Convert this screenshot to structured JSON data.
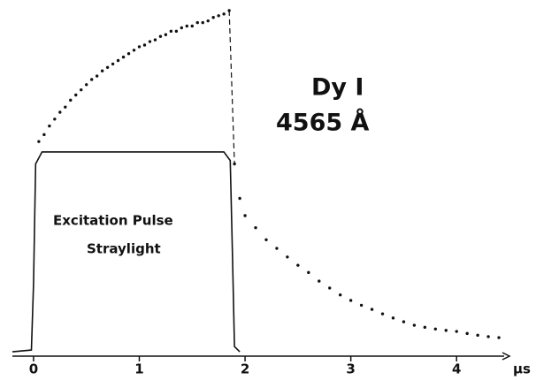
{
  "chart_data": {
    "type": "scatter",
    "xlim": [
      -0.2,
      4.5
    ],
    "ylim": [
      0,
      100
    ],
    "xticks": [
      0,
      1,
      2,
      3,
      4
    ],
    "x_label": "µs",
    "annotations": [
      "Dy I",
      "4565 Å",
      "Excitation  Pulse",
      "Straylight"
    ],
    "series": [
      {
        "type": "line",
        "color": "#111",
        "x": [
          -0.2,
          -0.02,
          0,
          0.02,
          0.08,
          1.8,
          1.86,
          1.88,
          1.9,
          1.95
        ],
        "values": [
          0.5,
          1,
          20,
          55,
          58.5,
          58.5,
          56,
          30,
          2,
          0.5
        ]
      },
      {
        "type": "scatter",
        "color": "#111",
        "x": [
          0.05,
          0.1,
          0.15,
          0.2,
          0.25,
          0.3,
          0.35,
          0.4,
          0.45,
          0.5,
          0.55,
          0.6,
          0.65,
          0.7,
          0.75,
          0.8,
          0.85,
          0.9,
          0.95,
          1.0,
          1.05,
          1.1,
          1.15,
          1.2,
          1.25,
          1.3,
          1.35,
          1.4,
          1.45,
          1.5,
          1.55,
          1.6,
          1.65,
          1.7,
          1.75,
          1.8,
          1.85
        ],
        "values": [
          61.5,
          63.5,
          66,
          68,
          70,
          71.5,
          73.5,
          75,
          76.5,
          78,
          79.5,
          80.5,
          82,
          83,
          84,
          85,
          86,
          87,
          88,
          89,
          89.5,
          90.5,
          91,
          92,
          92.5,
          93.5,
          93.5,
          94.5,
          95,
          95,
          96,
          96,
          96.5,
          97.5,
          98,
          98.5,
          99.5
        ]
      },
      {
        "type": "scatter",
        "color": "#111",
        "x": [
          1.9,
          1.95,
          2.0,
          2.1,
          2.2,
          2.3,
          2.4,
          2.5,
          2.6,
          2.7,
          2.8,
          2.9,
          3.0,
          3.1,
          3.2,
          3.3,
          3.4,
          3.5,
          3.6,
          3.7,
          3.8,
          3.9,
          4.0,
          4.1,
          4.2,
          4.3,
          4.4
        ],
        "values": [
          55,
          45,
          40,
          36.5,
          33,
          30.5,
          28,
          25.6,
          23.5,
          21,
          19,
          17,
          15.4,
          14,
          12.8,
          11.5,
          10.3,
          9.2,
          8.2,
          7.6,
          7.1,
          6.7,
          6.4,
          5.8,
          5.3,
          4.9,
          4.6
        ]
      }
    ]
  }
}
